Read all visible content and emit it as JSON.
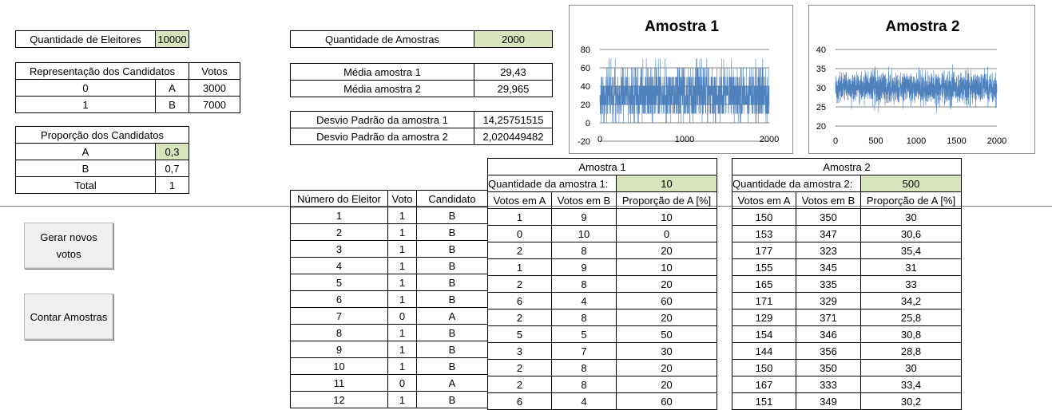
{
  "eleitores": {
    "label": "Quantidade de Eleitores",
    "value": "10000"
  },
  "representacao": {
    "header": "Representação dos Candidatos",
    "votos_header": "Votos",
    "rows": [
      {
        "code": "0",
        "cand": "A",
        "votos": "3000"
      },
      {
        "code": "1",
        "cand": "B",
        "votos": "7000"
      }
    ]
  },
  "proporcao": {
    "header": "Proporção dos Candidatos",
    "rows": [
      {
        "cand": "A",
        "val": "0,3"
      },
      {
        "cand": "B",
        "val": "0,7"
      },
      {
        "cand": "Total",
        "val": "1"
      }
    ]
  },
  "amostras": {
    "label": "Quantidade de Amostras",
    "value": "2000"
  },
  "medias": [
    {
      "label": "Média amostra 1",
      "value": "29,43"
    },
    {
      "label": "Média amostra 2",
      "value": "29,965"
    }
  ],
  "desvios": [
    {
      "label": "Desvio Padrão da amostra 1",
      "value": "14,25751515"
    },
    {
      "label": "Desvio Padrão da amostra 2",
      "value": "2,020449482"
    }
  ],
  "buttons": {
    "gerar": "Gerar novos votos",
    "contar": "Contar Amostras"
  },
  "eleitor_table": {
    "headers": [
      "Número do Eleitor",
      "Voto",
      "Candidato"
    ],
    "rows": [
      [
        "1",
        "1",
        "B"
      ],
      [
        "2",
        "1",
        "B"
      ],
      [
        "3",
        "1",
        "B"
      ],
      [
        "4",
        "1",
        "B"
      ],
      [
        "5",
        "1",
        "B"
      ],
      [
        "6",
        "1",
        "B"
      ],
      [
        "7",
        "0",
        "A"
      ],
      [
        "8",
        "1",
        "B"
      ],
      [
        "9",
        "1",
        "B"
      ],
      [
        "10",
        "1",
        "B"
      ],
      [
        "11",
        "0",
        "A"
      ],
      [
        "12",
        "1",
        "B"
      ]
    ]
  },
  "amostra1": {
    "title": "Amostra 1",
    "qty_label": "Quantidade da amostra 1:",
    "qty_value": "10",
    "headers": [
      "Votos em A",
      "Votos em B",
      "Proporção de A [%]"
    ],
    "rows": [
      [
        "1",
        "9",
        "10"
      ],
      [
        "0",
        "10",
        "0"
      ],
      [
        "2",
        "8",
        "20"
      ],
      [
        "1",
        "9",
        "10"
      ],
      [
        "2",
        "8",
        "20"
      ],
      [
        "6",
        "4",
        "60"
      ],
      [
        "2",
        "8",
        "20"
      ],
      [
        "5",
        "5",
        "50"
      ],
      [
        "3",
        "7",
        "30"
      ],
      [
        "2",
        "8",
        "20"
      ],
      [
        "2",
        "8",
        "20"
      ],
      [
        "6",
        "4",
        "60"
      ]
    ]
  },
  "amostra2": {
    "title": "Amostra 2",
    "qty_label": "Quantidade da amostra 2:",
    "qty_value": "500",
    "headers": [
      "Votos em A",
      "Votos em B",
      "Proporção de A [%]"
    ],
    "rows": [
      [
        "150",
        "350",
        "30"
      ],
      [
        "153",
        "347",
        "30,6"
      ],
      [
        "177",
        "323",
        "35,4"
      ],
      [
        "155",
        "345",
        "31"
      ],
      [
        "165",
        "335",
        "33"
      ],
      [
        "171",
        "329",
        "34,2"
      ],
      [
        "129",
        "371",
        "25,8"
      ],
      [
        "154",
        "346",
        "30,8"
      ],
      [
        "144",
        "356",
        "28,8"
      ],
      [
        "150",
        "350",
        "30"
      ],
      [
        "167",
        "333",
        "33,4"
      ],
      [
        "151",
        "349",
        "30,2"
      ]
    ]
  },
  "chart_data": [
    {
      "type": "line",
      "title": "Amostra 1",
      "series_color": "#4f81bd",
      "n_points": 2000,
      "xlim": [
        0,
        2000
      ],
      "xticks": [
        "0",
        "1000",
        "2000"
      ],
      "ylim": [
        -20,
        80
      ],
      "yticks": [
        "-20",
        "0",
        "20",
        "40",
        "60",
        "80"
      ],
      "grid": true,
      "mean": 29.43,
      "std": 14.25751515,
      "min": 0,
      "max": 70
    },
    {
      "type": "line",
      "title": "Amostra 2",
      "series_color": "#4f81bd",
      "n_points": 2000,
      "xlim": [
        0,
        2000
      ],
      "xticks": [
        "0",
        "500",
        "1000",
        "1500",
        "2000"
      ],
      "ylim": [
        20,
        40
      ],
      "yticks": [
        "20",
        "25",
        "30",
        "35",
        "40"
      ],
      "grid": true,
      "mean": 29.965,
      "std": 2.020449482,
      "min": 23,
      "max": 37
    }
  ]
}
